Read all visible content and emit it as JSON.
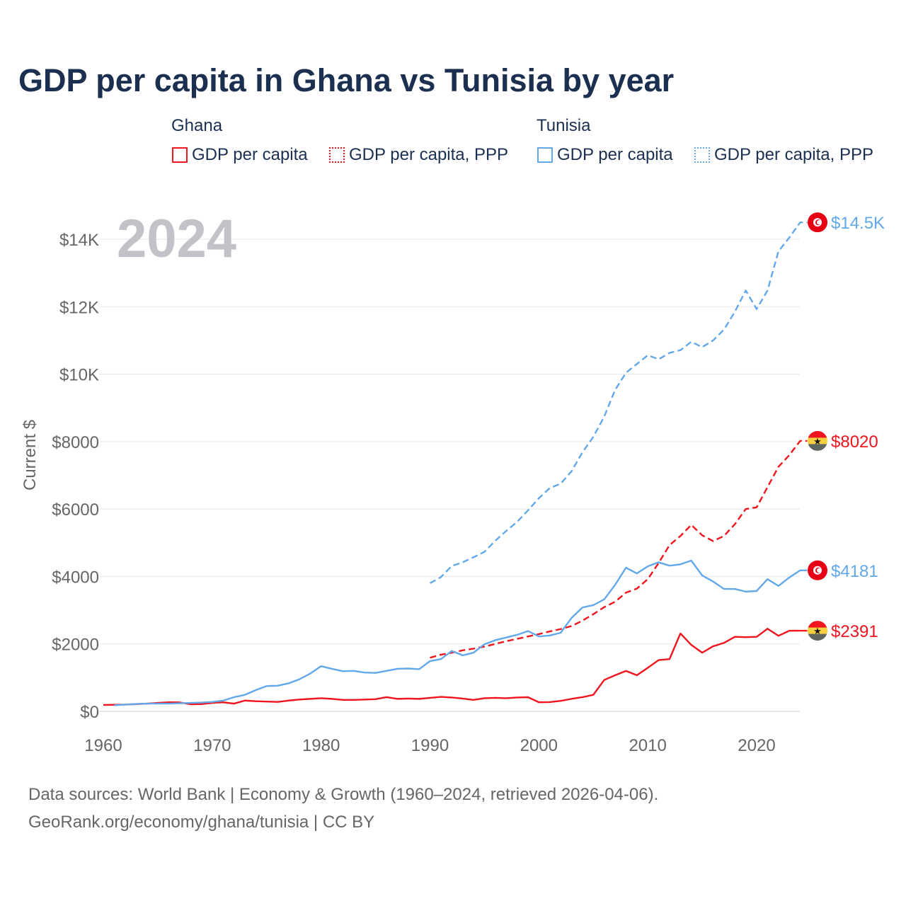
{
  "title": "GDP per capita in Ghana vs Tunisia by year",
  "legend": {
    "groups": [
      {
        "country": "Ghana",
        "items": [
          "GDP per capita",
          "GDP per capita, PPP"
        ],
        "color": "#f0141e"
      },
      {
        "country": "Tunisia",
        "items": [
          "GDP per capita",
          "GDP per capita, PPP"
        ],
        "color": "#62a8ea"
      }
    ]
  },
  "year_watermark": "2024",
  "footer": {
    "line1": "Data sources: World Bank | Economy & Growth (1960–2024, retrieved 2026-04-06).",
    "line2": "GeoRank.org/economy/ghana/tunisia | CC BY"
  },
  "chart_data": {
    "type": "line",
    "title": "GDP per capita in Ghana vs Tunisia by year",
    "xlabel": "",
    "ylabel": "Current $",
    "xlim": [
      1960,
      2024
    ],
    "ylim": [
      0,
      14500
    ],
    "x_ticks": [
      1960,
      1970,
      1980,
      1990,
      2000,
      2010,
      2020
    ],
    "x_tick_labels": [
      "1960",
      "1970",
      "1980",
      "1990",
      "2000",
      "2010",
      "2020"
    ],
    "y_ticks": [
      0,
      2000,
      4000,
      6000,
      8000,
      10000,
      12000,
      14000
    ],
    "y_tick_labels": [
      "$0",
      "$2000",
      "$4000",
      "$6000",
      "$8000",
      "$10K",
      "$12K",
      "$14K"
    ],
    "grid": true,
    "legend_position": "top",
    "series": [
      {
        "name": "Ghana GDP per capita",
        "color": "#f0141e",
        "dash": false,
        "end_label": "$2391",
        "flag": "ghana",
        "start": 1960,
        "values": [
          190,
          195,
          200,
          215,
          230,
          250,
          270,
          265,
          210,
          215,
          250,
          270,
          230,
          320,
          300,
          290,
          280,
          320,
          350,
          370,
          390,
          370,
          340,
          340,
          350,
          360,
          420,
          370,
          380,
          370,
          400,
          430,
          410,
          380,
          340,
          390,
          400,
          390,
          410,
          420,
          270,
          275,
          310,
          370,
          420,
          490,
          930,
          1070,
          1200,
          1070,
          1290,
          1520,
          1550,
          2310,
          1970,
          1740,
          1930,
          2030,
          2210,
          2200,
          2210,
          2450,
          2240,
          2390,
          2391
        ]
      },
      {
        "name": "Ghana GDP per capita, PPP",
        "color": "#f0141e",
        "dash": true,
        "end_label": "$8020",
        "flag": "ghana",
        "start": 1990,
        "values": [
          1590,
          1680,
          1740,
          1810,
          1860,
          1920,
          2000,
          2080,
          2150,
          2220,
          2290,
          2370,
          2440,
          2530,
          2690,
          2880,
          3090,
          3250,
          3520,
          3640,
          3920,
          4400,
          4930,
          5200,
          5530,
          5220,
          5050,
          5200,
          5550,
          6000,
          6050,
          6650,
          7250,
          7600,
          8020
        ]
      },
      {
        "name": "Tunisia GDP per capita",
        "color": "#62a8ea",
        "dash": false,
        "end_label": "$4181",
        "flag": "tunisia",
        "start": 1961,
        "values": [
          180,
          200,
          220,
          230,
          230,
          230,
          240,
          250,
          260,
          280,
          320,
          420,
          490,
          630,
          750,
          760,
          830,
          950,
          1120,
          1340,
          1260,
          1190,
          1200,
          1150,
          1140,
          1200,
          1260,
          1270,
          1250,
          1490,
          1550,
          1790,
          1660,
          1740,
          1990,
          2110,
          2190,
          2270,
          2380,
          2220,
          2250,
          2330,
          2770,
          3080,
          3150,
          3320,
          3750,
          4260,
          4090,
          4300,
          4420,
          4320,
          4360,
          4470,
          4030,
          3850,
          3630,
          3630,
          3550,
          3570,
          3920,
          3720,
          3970,
          4181
        ]
      },
      {
        "name": "Tunisia GDP per capita, PPP",
        "color": "#62a8ea",
        "dash": true,
        "end_label": "$14.5K",
        "flag": "tunisia",
        "start": 1990,
        "values": [
          3800,
          3980,
          4310,
          4420,
          4570,
          4730,
          5060,
          5350,
          5620,
          5960,
          6320,
          6620,
          6750,
          7120,
          7680,
          8140,
          8740,
          9530,
          10040,
          10300,
          10560,
          10440,
          10630,
          10710,
          10960,
          10800,
          11000,
          11320,
          11850,
          12480,
          11930,
          12480,
          13640,
          14050,
          14500
        ]
      }
    ]
  }
}
